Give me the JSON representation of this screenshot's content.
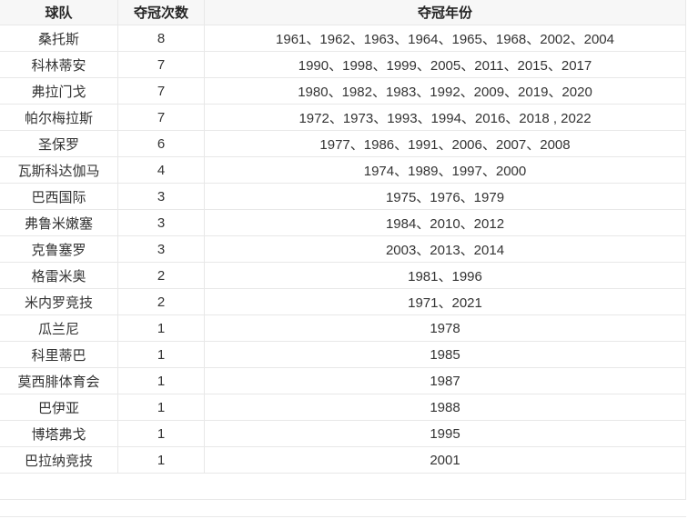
{
  "colors": {
    "border": "#e8e8e8",
    "header_bg": "#f7f7f7",
    "text": "#333333"
  },
  "chart_data": {
    "type": "table",
    "title": "",
    "columns": [
      "球队",
      "夺冠次数",
      "夺冠年份"
    ],
    "rows": [
      [
        "桑托斯",
        "8",
        "1961、1962、1963、1964、1965、1968、2002、2004"
      ],
      [
        "科林蒂安",
        "7",
        "1990、1998、1999、2005、2011、2015、2017"
      ],
      [
        "弗拉门戈",
        "7",
        "1980、1982、1983、1992、2009、2019、2020"
      ],
      [
        "帕尔梅拉斯",
        "7",
        "1972、1973、1993、1994、2016、2018 , 2022"
      ],
      [
        "圣保罗",
        "6",
        "1977、1986、1991、2006、2007、2008"
      ],
      [
        "瓦斯科达伽马",
        "4",
        "1974、1989、1997、2000"
      ],
      [
        "巴西国际",
        "3",
        "1975、1976、1979"
      ],
      [
        "弗鲁米嫩塞",
        "3",
        "1984、2010、2012"
      ],
      [
        "克鲁塞罗",
        "3",
        "2003、2013、2014"
      ],
      [
        "格雷米奥",
        "2",
        "1981、1996"
      ],
      [
        "米内罗竞技",
        "2",
        "1971、2021"
      ],
      [
        "瓜兰尼",
        "1",
        "1978"
      ],
      [
        "科里蒂巴",
        "1",
        "1985"
      ],
      [
        "莫西腓体育会",
        "1",
        "1987"
      ],
      [
        "巴伊亚",
        "1",
        "1988"
      ],
      [
        "博塔弗戈",
        "1",
        "1995"
      ],
      [
        "巴拉纳竞技",
        "1",
        "2001"
      ]
    ]
  }
}
